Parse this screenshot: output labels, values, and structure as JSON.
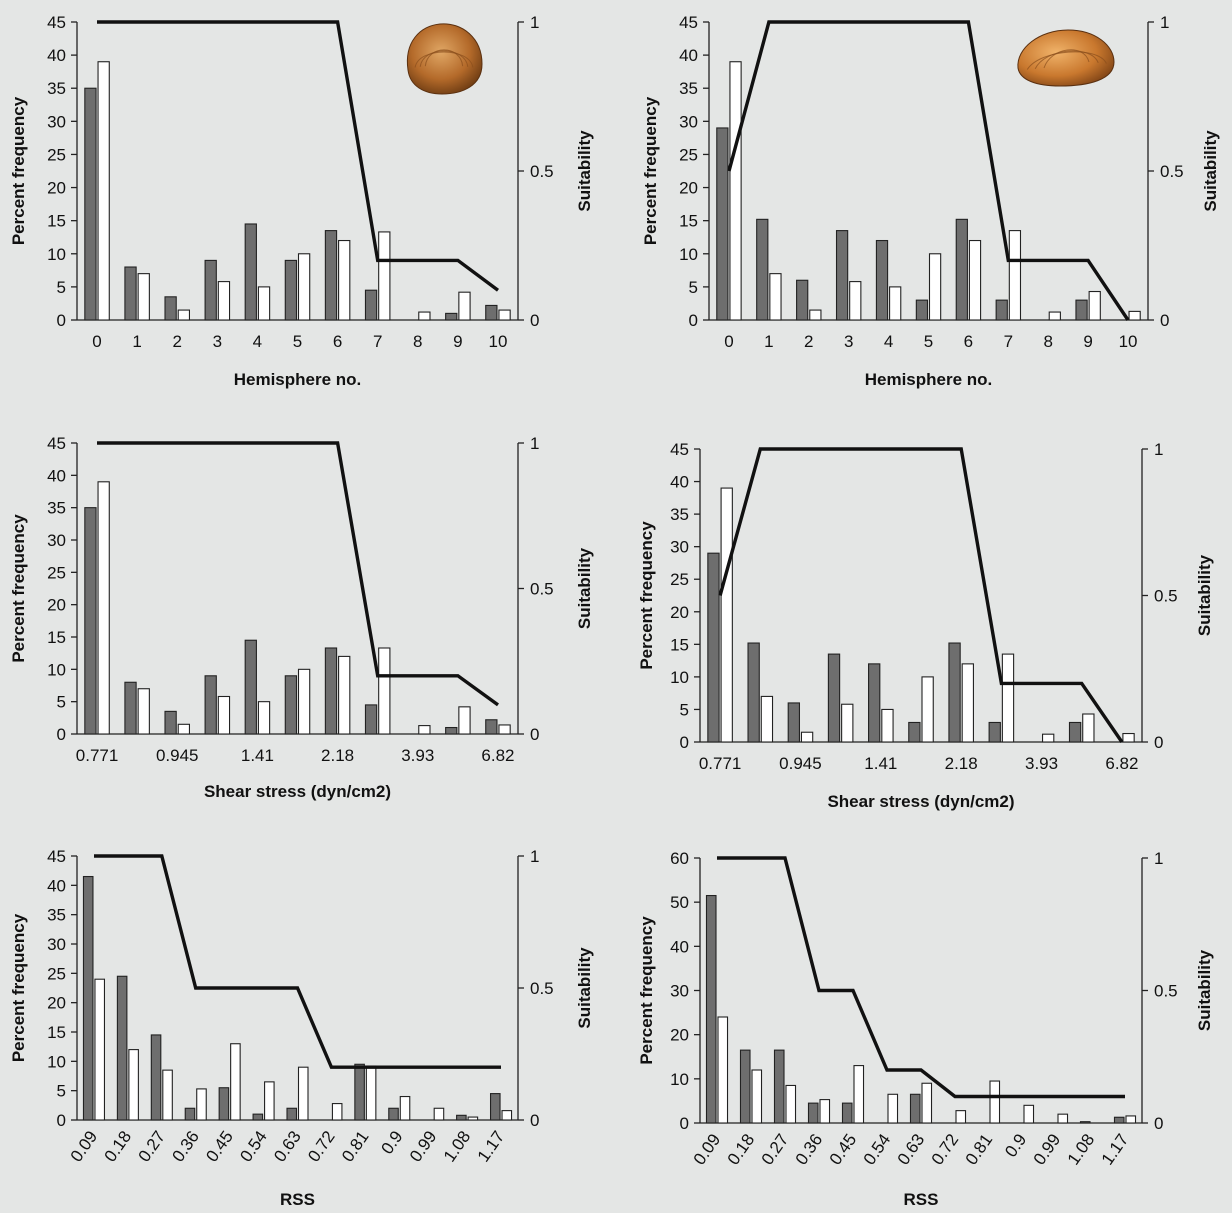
{
  "chart_data": [
    {
      "type": "bar",
      "panel": "top-left",
      "icon": "clam-shell-icon",
      "xlabel": "Hemisphere no.",
      "ylabel": "Percent frequency",
      "y2label": "Suitability",
      "ylim": [
        0,
        45
      ],
      "yticks": [
        0,
        5,
        10,
        15,
        20,
        25,
        30,
        35,
        40,
        45
      ],
      "y2lim": [
        0,
        1
      ],
      "y2ticks": [
        "0",
        "0.5",
        "1"
      ],
      "categories": [
        "0",
        "1",
        "2",
        "3",
        "4",
        "5",
        "6",
        "7",
        "8",
        "9",
        "10"
      ],
      "tick_labels": [
        "0",
        "1",
        "2",
        "3",
        "4",
        "5",
        "6",
        "7",
        "8",
        "9",
        "10"
      ],
      "rotate_ticks": false,
      "series": [
        {
          "style": "filled",
          "values": [
            35,
            8,
            3.5,
            9,
            14.5,
            9,
            13.5,
            4.5,
            0,
            1,
            2.2
          ]
        },
        {
          "style": "open",
          "values": [
            39,
            7,
            1.5,
            5.8,
            5,
            10,
            12,
            13.3,
            1.2,
            4.2,
            1.5
          ]
        }
      ],
      "suitability": [
        1,
        1,
        1,
        1,
        1,
        1,
        1,
        0.2,
        0.2,
        0.2,
        0.1
      ],
      "colors": {
        "filled": "#6e6e6e",
        "open": "#ffffff",
        "line": "#111111"
      }
    },
    {
      "type": "bar",
      "panel": "top-right",
      "icon": "mussel-shell-icon",
      "xlabel": "Hemisphere no.",
      "ylabel": "Percent frequency",
      "y2label": "Suitability",
      "ylim": [
        0,
        45
      ],
      "yticks": [
        0,
        5,
        10,
        15,
        20,
        25,
        30,
        35,
        40,
        45
      ],
      "y2lim": [
        0,
        1
      ],
      "y2ticks": [
        "0",
        "0.5",
        "1"
      ],
      "categories": [
        "0",
        "1",
        "2",
        "3",
        "4",
        "5",
        "6",
        "7",
        "8",
        "9",
        "10"
      ],
      "tick_labels": [
        "0",
        "1",
        "2",
        "3",
        "4",
        "5",
        "6",
        "7",
        "8",
        "9",
        "10"
      ],
      "rotate_ticks": false,
      "series": [
        {
          "style": "filled",
          "values": [
            29,
            15.2,
            6,
            13.5,
            12,
            3,
            15.2,
            3,
            0,
            3,
            0
          ]
        },
        {
          "style": "open",
          "values": [
            39,
            7,
            1.5,
            5.8,
            5,
            10,
            12,
            13.5,
            1.2,
            4.3,
            1.3
          ]
        }
      ],
      "suitability": [
        0.5,
        1,
        1,
        1,
        1,
        1,
        1,
        0.2,
        0.2,
        0.2,
        0
      ],
      "colors": {
        "filled": "#6e6e6e",
        "open": "#ffffff",
        "line": "#111111"
      }
    },
    {
      "type": "bar",
      "panel": "middle-left",
      "xlabel": "Shear stress (dyn/cm2)",
      "ylabel": "Percent frequency",
      "y2label": "Suitability",
      "ylim": [
        0,
        45
      ],
      "yticks": [
        0,
        5,
        10,
        15,
        20,
        25,
        30,
        35,
        40,
        45
      ],
      "y2lim": [
        0,
        1
      ],
      "y2ticks": [
        "0",
        "0.5",
        "1"
      ],
      "categories": [
        "c0",
        "c1",
        "c2",
        "c3",
        "c4",
        "c5",
        "c6",
        "c7",
        "c8",
        "c9",
        "c10"
      ],
      "tick_labels": [
        "0.771",
        "",
        "0.945",
        "",
        "1.41",
        "",
        "2.18",
        "",
        "3.93",
        "",
        "6.82"
      ],
      "rotate_ticks": false,
      "series": [
        {
          "style": "filled",
          "values": [
            35,
            8,
            3.5,
            9,
            14.5,
            9,
            13.3,
            4.5,
            0,
            1,
            2.2
          ]
        },
        {
          "style": "open",
          "values": [
            39,
            7,
            1.5,
            5.8,
            5,
            10,
            12,
            13.3,
            1.3,
            4.2,
            1.4
          ]
        }
      ],
      "suitability": [
        1,
        1,
        1,
        1,
        1,
        1,
        1,
        0.2,
        0.2,
        0.2,
        0.1
      ],
      "colors": {
        "filled": "#6e6e6e",
        "open": "#ffffff",
        "line": "#111111"
      }
    },
    {
      "type": "bar",
      "panel": "middle-right",
      "xlabel": "Shear stress (dyn/cm2)",
      "ylabel": "Percent frequency",
      "y2label": "Suitability",
      "ylim": [
        0,
        45
      ],
      "yticks": [
        0,
        5,
        10,
        15,
        20,
        25,
        30,
        35,
        40,
        45
      ],
      "y2lim": [
        0,
        1
      ],
      "y2ticks": [
        "0",
        "0.5",
        "1"
      ],
      "categories": [
        "c0",
        "c1",
        "c2",
        "c3",
        "c4",
        "c5",
        "c6",
        "c7",
        "c8",
        "c9",
        "c10"
      ],
      "tick_labels": [
        "0.771",
        "",
        "0.945",
        "",
        "1.41",
        "",
        "2.18",
        "",
        "3.93",
        "",
        "6.82"
      ],
      "rotate_ticks": false,
      "series": [
        {
          "style": "filled",
          "values": [
            29,
            15.2,
            6,
            13.5,
            12,
            3,
            15.2,
            3,
            0,
            3,
            0
          ]
        },
        {
          "style": "open",
          "values": [
            39,
            7,
            1.5,
            5.8,
            5,
            10,
            12,
            13.5,
            1.2,
            4.3,
            1.3
          ]
        }
      ],
      "suitability": [
        0.5,
        1,
        1,
        1,
        1,
        1,
        1,
        0.2,
        0.2,
        0.2,
        0
      ],
      "colors": {
        "filled": "#6e6e6e",
        "open": "#ffffff",
        "line": "#111111"
      }
    },
    {
      "type": "bar",
      "panel": "bottom-left",
      "xlabel": "RSS",
      "ylabel": "Percent frequency",
      "y2label": "Suitability",
      "ylim": [
        0,
        45
      ],
      "yticks": [
        0,
        5,
        10,
        15,
        20,
        25,
        30,
        35,
        40,
        45
      ],
      "y2lim": [
        0,
        1
      ],
      "y2ticks": [
        "0",
        "0.5",
        "1"
      ],
      "categories": [
        "0.09",
        "0.18",
        "0.27",
        "0.36",
        "0.45",
        "0.54",
        "0.63",
        "0.72",
        "0.81",
        "0.9",
        "0.99",
        "1.08",
        "1.17"
      ],
      "tick_labels": [
        "0.09",
        "0.18",
        "0.27",
        "0.36",
        "0.45",
        "0.54",
        "0.63",
        "0.72",
        "0.81",
        "0.9",
        "0.99",
        "1.08",
        "1.17"
      ],
      "rotate_ticks": true,
      "series": [
        {
          "style": "filled",
          "values": [
            41.5,
            24.5,
            14.5,
            2,
            5.5,
            1,
            2,
            0,
            9.5,
            2,
            0,
            0.8,
            4.5
          ]
        },
        {
          "style": "open",
          "values": [
            24,
            12,
            8.5,
            5.3,
            13,
            6.5,
            9,
            2.8,
            9.2,
            4,
            2,
            0.5,
            1.6
          ]
        }
      ],
      "suitability": [
        1,
        1,
        1,
        0.5,
        0.5,
        0.5,
        0.5,
        0.2,
        0.2,
        0.2,
        0.2,
        0.2,
        0.2
      ],
      "colors": {
        "filled": "#6e6e6e",
        "open": "#ffffff",
        "line": "#111111"
      }
    },
    {
      "type": "bar",
      "panel": "bottom-right",
      "xlabel": "RSS",
      "ylabel": "Percent frequency",
      "y2label": "Suitability",
      "ylim": [
        0,
        60
      ],
      "yticks": [
        0,
        10,
        20,
        30,
        40,
        50,
        60
      ],
      "y2lim": [
        0,
        1
      ],
      "y2ticks": [
        "0",
        "0.5",
        "1"
      ],
      "categories": [
        "0.09",
        "0.18",
        "0.27",
        "0.36",
        "0.45",
        "0.54",
        "0.63",
        "0.72",
        "0.81",
        "0.9",
        "0.99",
        "1.08",
        "1.17"
      ],
      "tick_labels": [
        "0.09",
        "0.18",
        "0.27",
        "0.36",
        "0.45",
        "0.54",
        "0.63",
        "0.72",
        "0.81",
        "0.9",
        "0.99",
        "1.08",
        "1.17"
      ],
      "rotate_ticks": true,
      "series": [
        {
          "style": "filled",
          "values": [
            51.5,
            16.5,
            16.5,
            4.5,
            4.5,
            0,
            6.5,
            0,
            0,
            0,
            0,
            0.3,
            1.3
          ]
        },
        {
          "style": "open",
          "values": [
            24,
            12,
            8.5,
            5.3,
            13,
            6.5,
            9,
            2.8,
            9.5,
            4,
            2,
            0,
            1.6
          ]
        }
      ],
      "suitability": [
        1,
        1,
        1,
        0.5,
        0.5,
        0.2,
        0.2,
        0.1,
        0.1,
        0.1,
        0.1,
        0.1,
        0.1
      ],
      "colors": {
        "filled": "#6e6e6e",
        "open": "#ffffff",
        "line": "#111111"
      }
    }
  ]
}
